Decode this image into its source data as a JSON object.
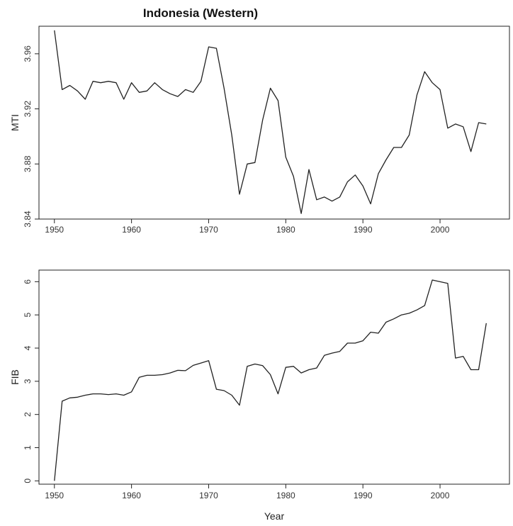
{
  "chart_data": [
    {
      "type": "line",
      "title": "Indonesia (Western)",
      "xlabel": "",
      "ylabel": "MTI",
      "xlim": [
        1948,
        2009
      ],
      "ylim": [
        3.84,
        3.98
      ],
      "xticks": [
        "1950",
        "1960",
        "1970",
        "1980",
        "1990",
        "2000"
      ],
      "yticks": [
        "3.84",
        "3.88",
        "3.92",
        "3.96"
      ],
      "x": [
        1950,
        1951,
        1952,
        1953,
        1954,
        1955,
        1956,
        1957,
        1958,
        1959,
        1960,
        1961,
        1962,
        1963,
        1964,
        1965,
        1966,
        1967,
        1968,
        1969,
        1970,
        1971,
        1972,
        1973,
        1974,
        1975,
        1976,
        1977,
        1978,
        1979,
        1980,
        1981,
        1982,
        1983,
        1984,
        1985,
        1986,
        1987,
        1988,
        1989,
        1990,
        1991,
        1992,
        1993,
        1994,
        1995,
        1996,
        1997,
        1998,
        1999,
        2000,
        2001,
        2002,
        2003,
        2004,
        2005,
        2006
      ],
      "values": [
        3.977,
        3.934,
        3.937,
        3.933,
        3.927,
        3.94,
        3.939,
        3.94,
        3.939,
        3.927,
        3.939,
        3.932,
        3.933,
        3.939,
        3.934,
        3.931,
        3.929,
        3.934,
        3.932,
        3.94,
        3.965,
        3.964,
        3.935,
        3.901,
        3.858,
        3.88,
        3.881,
        3.912,
        3.935,
        3.926,
        3.885,
        3.871,
        3.844,
        3.876,
        3.854,
        3.856,
        3.853,
        3.856,
        3.867,
        3.872,
        3.864,
        3.851,
        3.873,
        3.883,
        3.892,
        3.892,
        3.901,
        3.93,
        3.947,
        3.939,
        3.934,
        3.906,
        3.909,
        3.907,
        3.889,
        3.91,
        3.909
      ]
    },
    {
      "type": "line",
      "title": "",
      "xlabel": "Year",
      "ylabel": "FIB",
      "xlim": [
        1948,
        2009
      ],
      "ylim": [
        -0.1,
        6.35
      ],
      "xticks": [
        "1950",
        "1960",
        "1970",
        "1980",
        "1990",
        "2000"
      ],
      "yticks": [
        "0",
        "1",
        "2",
        "3",
        "4",
        "5",
        "6"
      ],
      "x": [
        1950,
        1951,
        1952,
        1953,
        1954,
        1955,
        1956,
        1957,
        1958,
        1959,
        1960,
        1961,
        1962,
        1963,
        1964,
        1965,
        1966,
        1967,
        1968,
        1969,
        1970,
        1971,
        1972,
        1973,
        1974,
        1975,
        1976,
        1977,
        1978,
        1979,
        1980,
        1981,
        1982,
        1983,
        1984,
        1985,
        1986,
        1987,
        1988,
        1989,
        1990,
        1991,
        1992,
        1993,
        1994,
        1995,
        1996,
        1997,
        1998,
        1999,
        2000,
        2001,
        2002,
        2003,
        2004,
        2005,
        2006
      ],
      "values": [
        0.0,
        2.4,
        2.5,
        2.52,
        2.58,
        2.62,
        2.62,
        2.6,
        2.62,
        2.58,
        2.68,
        3.12,
        3.18,
        3.18,
        3.2,
        3.25,
        3.33,
        3.32,
        3.48,
        3.55,
        3.62,
        2.76,
        2.72,
        2.58,
        2.28,
        3.45,
        3.52,
        3.47,
        3.2,
        2.62,
        3.42,
        3.45,
        3.25,
        3.35,
        3.4,
        3.78,
        3.85,
        3.9,
        4.15,
        4.15,
        4.22,
        4.48,
        4.45,
        4.78,
        4.88,
        5.0,
        5.05,
        5.15,
        5.28,
        6.05,
        6.0,
        5.95,
        3.7,
        3.75,
        3.35,
        3.35,
        4.75
      ]
    }
  ],
  "panels_layout_note": ""
}
